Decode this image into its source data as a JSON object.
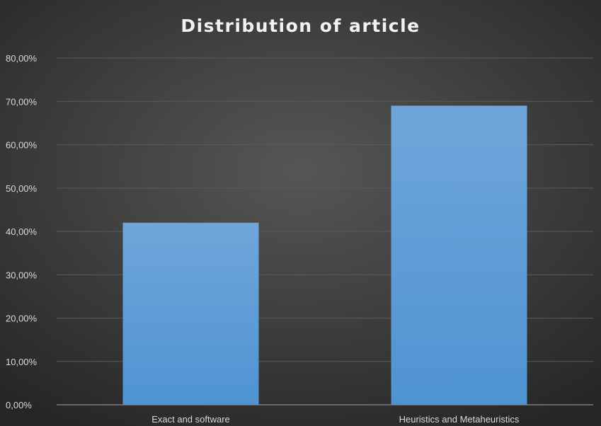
{
  "chart_data": {
    "type": "bar",
    "title": "Distribution of article",
    "xlabel": "",
    "ylabel": "",
    "categories": [
      "Exact and software",
      "Heuristics and Metaheuristics"
    ],
    "values": [
      42.0,
      69.0
    ],
    "ylim": [
      0,
      80
    ],
    "yticks": [
      0,
      10,
      20,
      30,
      40,
      50,
      60,
      70,
      80
    ],
    "ytick_labels": [
      "0,00%",
      "10,00%",
      "20,00%",
      "30,00%",
      "40,00%",
      "50,00%",
      "60,00%",
      "70,00%",
      "80,00%"
    ],
    "grid": true,
    "legend": "none",
    "colors": {
      "bar": "#5b9bd5",
      "background": "#404040",
      "gridline": "#5a5a5a",
      "text": "#d9d9d9"
    }
  }
}
